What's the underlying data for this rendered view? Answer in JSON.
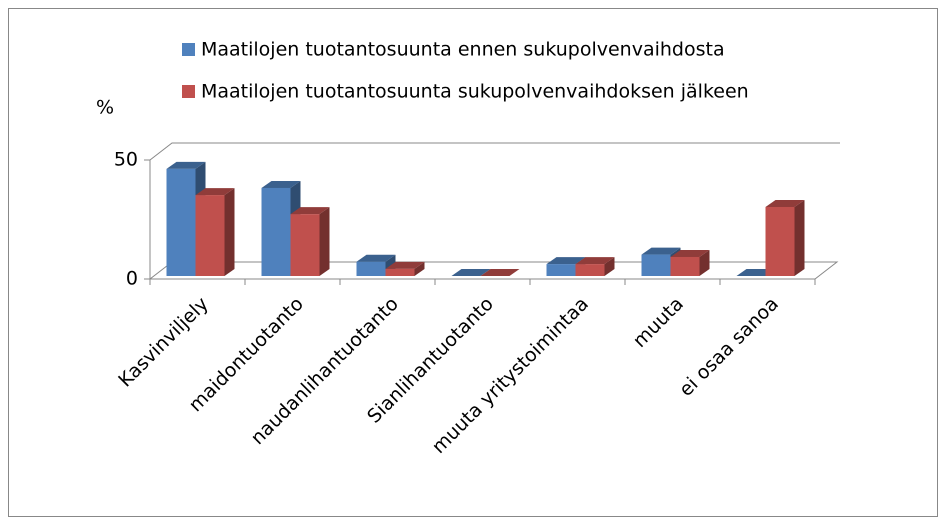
{
  "chart_data": {
    "type": "bar3d",
    "y_label": "%",
    "categories": [
      "Kasvinviljely",
      "maidontuotanto",
      "naudanlihantuotanto",
      "Sianlihantuotanto",
      "muuta yritystoimintaa",
      "muuta",
      "ei osaa sanoa"
    ],
    "series": [
      {
        "name": "Maatilojen tuotantosuunta ennen sukupolvenvaihdosta",
        "color": "#4f81bd",
        "values": [
          45,
          37,
          6,
          0,
          5,
          9,
          0
        ]
      },
      {
        "name": "Maatilojen tuotantosuunta sukupolvenvaihdoksen jälkeen",
        "color": "#c0504d",
        "values": [
          34,
          26,
          3,
          0,
          5,
          8,
          29
        ]
      }
    ],
    "ylim": [
      0,
      50
    ],
    "yticks": [
      0,
      50
    ],
    "grid": true
  }
}
